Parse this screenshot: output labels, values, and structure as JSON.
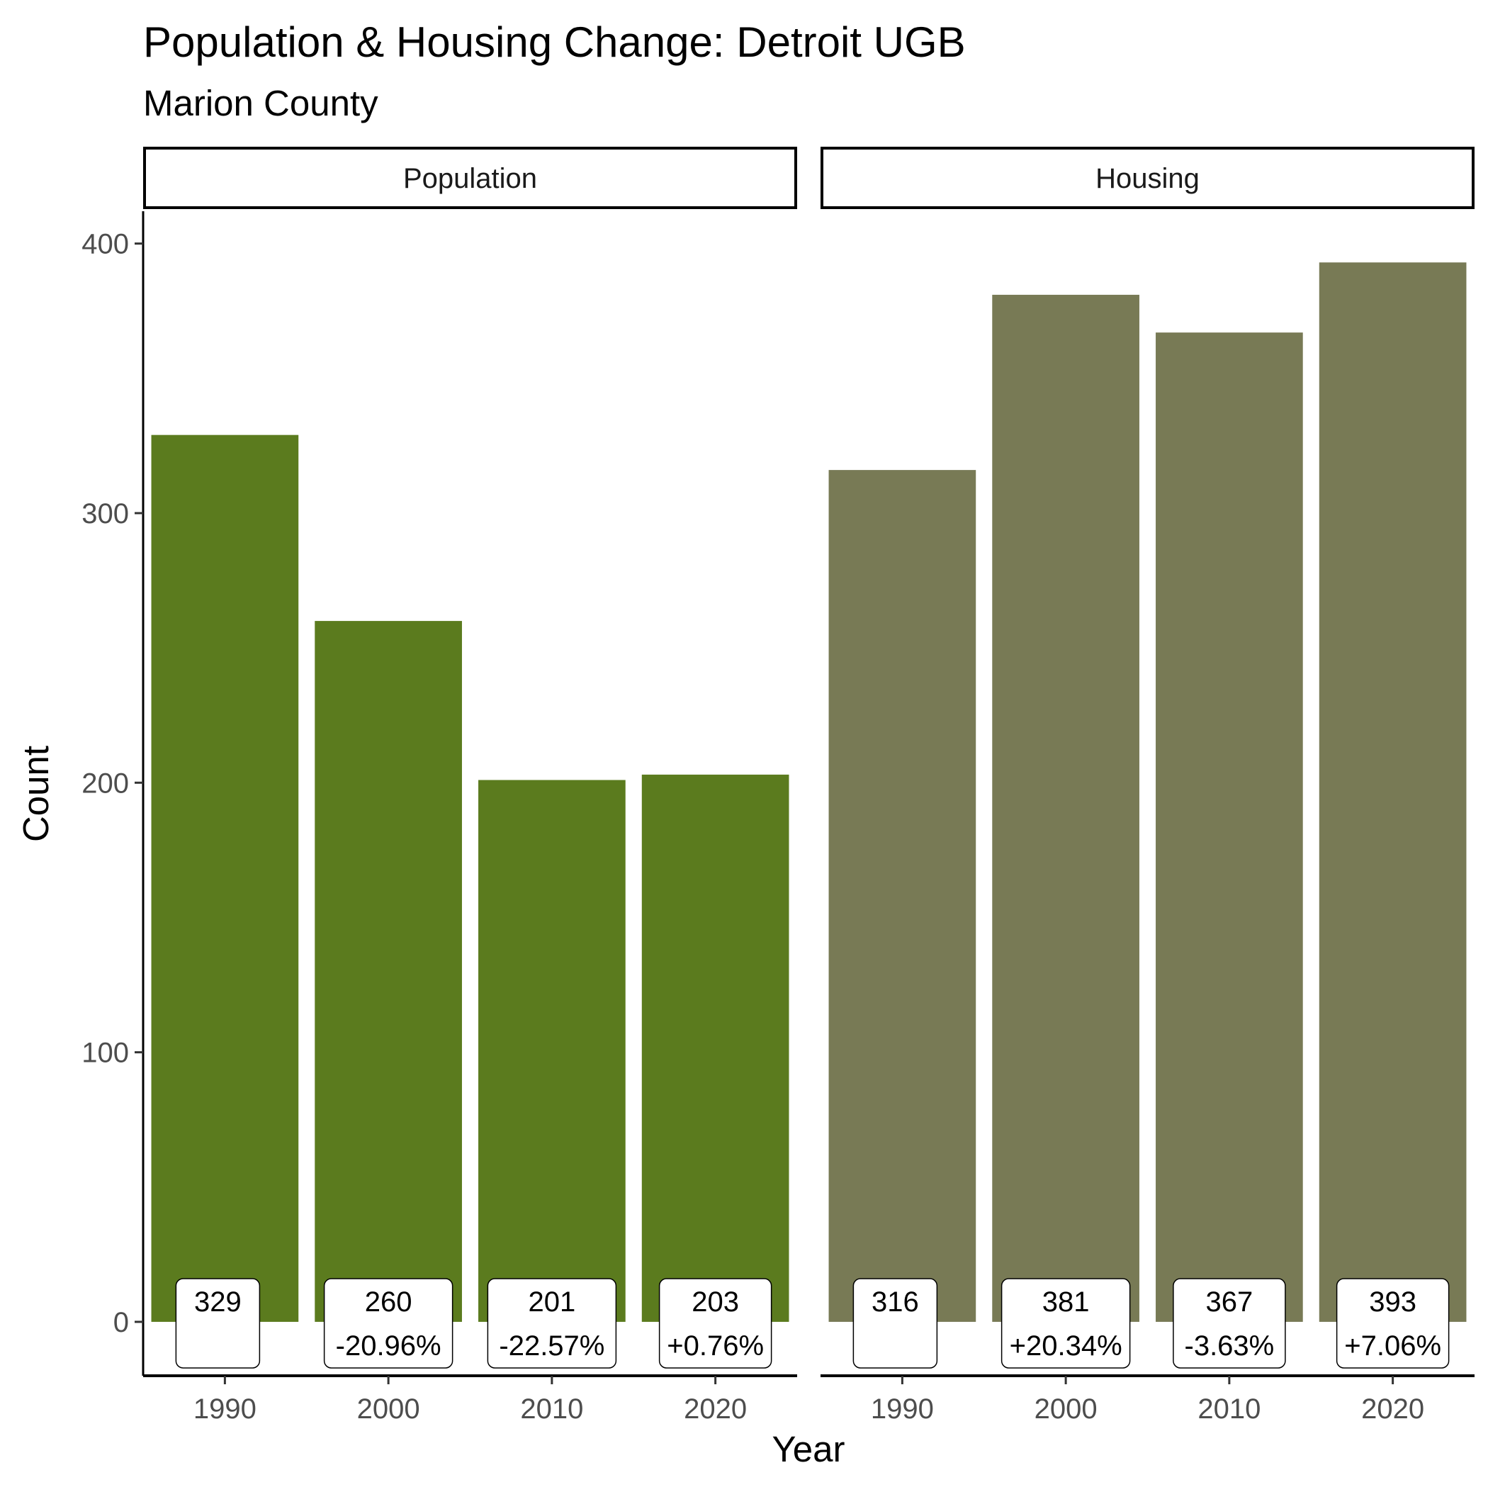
{
  "chart_data": {
    "type": "bar",
    "title": "Population & Housing Change: Detroit UGB",
    "subtitle": "Marion County",
    "xlabel": "Year",
    "ylabel": "Count",
    "ylim": [
      -20,
      412
    ],
    "yticks": [
      0,
      100,
      200,
      300,
      400
    ],
    "categories": [
      "1990",
      "2000",
      "2010",
      "2020"
    ],
    "panels": [
      {
        "name": "Population",
        "color": "#5b7b1e",
        "values": [
          329,
          260,
          201,
          203
        ],
        "labels": [
          "329",
          "260",
          "201",
          "203"
        ],
        "changes": [
          "",
          "-20.96%",
          "-22.57%",
          "+0.76%"
        ]
      },
      {
        "name": "Housing",
        "color": "#787a55",
        "values": [
          316,
          381,
          367,
          393
        ],
        "labels": [
          "316",
          "381",
          "367",
          "393"
        ],
        "changes": [
          "",
          "+20.34%",
          "-3.63%",
          "+7.06%"
        ]
      }
    ],
    "grid": false,
    "legend": "none"
  }
}
